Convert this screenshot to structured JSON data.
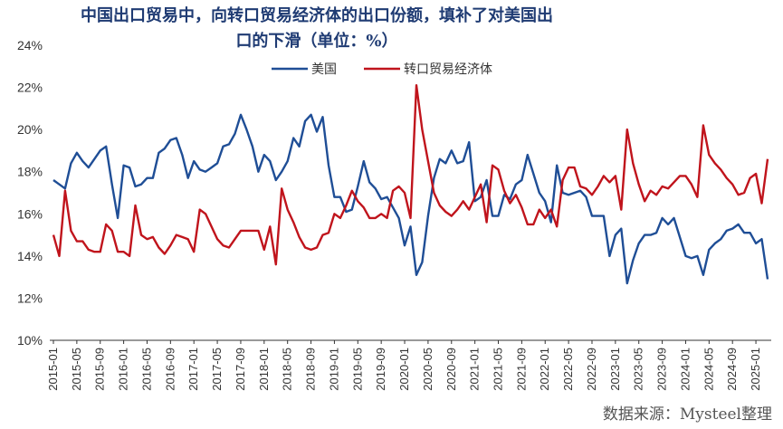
{
  "chart_data": {
    "type": "line",
    "title_line1": "中国出口贸易中，向转口贸易经济体的出口份额，填补了对美国出",
    "title_line2": "口的下滑（单位：%）",
    "source": "数据来源：Mysteel整理",
    "yticks": [
      "10%",
      "12%",
      "14%",
      "16%",
      "18%",
      "20%",
      "22%",
      "24%"
    ],
    "ylim": [
      10,
      24
    ],
    "xticks": [
      "2015-01",
      "2015-05",
      "2015-09",
      "2016-01",
      "2016-05",
      "2016-09",
      "2017-01",
      "2017-05",
      "2017-09",
      "2018-01",
      "2018-05",
      "2018-09",
      "2019-01",
      "2019-05",
      "2019-09",
      "2020-01",
      "2020-05",
      "2020-09",
      "2021-01",
      "2021-05",
      "2021-09",
      "2022-01",
      "2022-05",
      "2022-09",
      "2023-01",
      "2023-05",
      "2023-09",
      "2024-01",
      "2024-05",
      "2024-09",
      "2025-01"
    ],
    "grid": false,
    "legend_position": "top",
    "series": [
      {
        "name": "美国",
        "color": "#1f4e96",
        "values": [
          17.6,
          17.4,
          17.2,
          18.4,
          18.9,
          18.5,
          18.2,
          18.6,
          19.0,
          19.2,
          17.4,
          15.8,
          18.3,
          18.2,
          17.3,
          17.4,
          17.7,
          17.7,
          18.9,
          19.1,
          19.5,
          19.6,
          18.8,
          17.7,
          18.5,
          18.1,
          18.0,
          18.2,
          18.4,
          19.2,
          19.3,
          19.8,
          20.7,
          20.0,
          19.2,
          18.0,
          18.8,
          18.5,
          17.6,
          18.0,
          18.5,
          19.6,
          19.2,
          20.4,
          20.7,
          19.9,
          20.6,
          18.3,
          16.8,
          16.8,
          16.1,
          16.2,
          17.3,
          18.5,
          17.5,
          17.2,
          16.7,
          16.8,
          16.3,
          15.8,
          14.5,
          15.4,
          13.1,
          13.7,
          15.9,
          17.7,
          18.6,
          18.4,
          19.0,
          18.4,
          18.5,
          19.4,
          16.6,
          16.8,
          17.6,
          15.9,
          15.9,
          16.9,
          16.7,
          17.4,
          17.6,
          18.8,
          17.9,
          17.0,
          16.6,
          15.6,
          18.3,
          17.0,
          16.9,
          17.0,
          17.1,
          16.8,
          15.9,
          15.9,
          15.9,
          14.0,
          15.0,
          15.3,
          12.7,
          13.8,
          14.6,
          15.0,
          15.0,
          15.1,
          15.8,
          15.5,
          15.8,
          14.9,
          14.0,
          13.9,
          14.0,
          13.1,
          14.3,
          14.6,
          14.8,
          15.2,
          15.3,
          15.5,
          15.1,
          15.1,
          14.6,
          14.8,
          12.9
        ]
      },
      {
        "name": "转口贸易经济体",
        "color": "#c0141c",
        "values": [
          15.0,
          14.0,
          17.1,
          15.2,
          14.7,
          14.7,
          14.3,
          14.2,
          14.2,
          15.5,
          15.2,
          14.2,
          14.2,
          14.0,
          16.4,
          15.0,
          14.8,
          14.9,
          14.4,
          14.1,
          14.5,
          15.0,
          14.9,
          14.8,
          14.2,
          16.2,
          16.0,
          15.4,
          14.8,
          14.5,
          14.4,
          14.8,
          15.2,
          15.2,
          15.2,
          15.2,
          14.3,
          15.4,
          13.6,
          17.2,
          16.2,
          15.6,
          14.9,
          14.4,
          14.3,
          14.4,
          15.0,
          15.1,
          16.0,
          15.8,
          16.4,
          17.1,
          16.6,
          16.3,
          15.8,
          15.8,
          16.0,
          15.8,
          17.1,
          17.3,
          17.0,
          15.8,
          22.1,
          20.0,
          18.5,
          17.0,
          16.4,
          16.1,
          15.9,
          16.2,
          16.6,
          16.2,
          16.8,
          17.4,
          15.6,
          18.3,
          18.1,
          17.1,
          16.5,
          16.9,
          16.3,
          15.5,
          15.5,
          16.2,
          15.8,
          16.2,
          15.4,
          17.6,
          18.2,
          18.2,
          17.3,
          17.2,
          16.9,
          17.3,
          17.8,
          17.5,
          17.8,
          16.2,
          20.0,
          18.4,
          17.4,
          16.6,
          17.1,
          16.9,
          17.3,
          17.2,
          17.5,
          17.8,
          17.8,
          17.4,
          16.8,
          20.2,
          18.8,
          18.4,
          18.1,
          17.7,
          17.4,
          16.9,
          17.0,
          17.7,
          17.9,
          16.5,
          18.6
        ]
      }
    ]
  }
}
